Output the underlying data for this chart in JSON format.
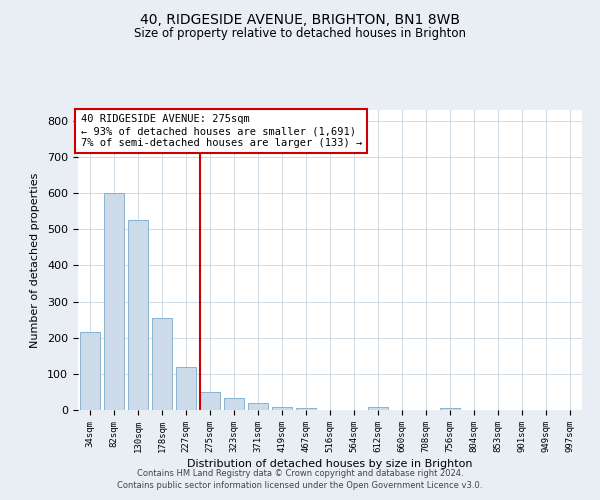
{
  "title": "40, RIDGESIDE AVENUE, BRIGHTON, BN1 8WB",
  "subtitle": "Size of property relative to detached houses in Brighton",
  "xlabel": "Distribution of detached houses by size in Brighton",
  "ylabel": "Number of detached properties",
  "bar_labels": [
    "34sqm",
    "82sqm",
    "130sqm",
    "178sqm",
    "227sqm",
    "275sqm",
    "323sqm",
    "371sqm",
    "419sqm",
    "467sqm",
    "516sqm",
    "564sqm",
    "612sqm",
    "660sqm",
    "708sqm",
    "756sqm",
    "804sqm",
    "853sqm",
    "901sqm",
    "949sqm",
    "997sqm"
  ],
  "bar_values": [
    215,
    600,
    527,
    255,
    118,
    50,
    33,
    18,
    8,
    5,
    0,
    0,
    7,
    0,
    0,
    5,
    0,
    0,
    0,
    0,
    0
  ],
  "bar_color": "#ccdaea",
  "bar_edge_color": "#7aaac8",
  "vline_color": "#cc0000",
  "annotation_title": "40 RIDGESIDE AVENUE: 275sqm",
  "annotation_line1": "← 93% of detached houses are smaller (1,691)",
  "annotation_line2": "7% of semi-detached houses are larger (133) →",
  "annotation_box_edgecolor": "#cc0000",
  "ylim": [
    0,
    830
  ],
  "yticks": [
    0,
    100,
    200,
    300,
    400,
    500,
    600,
    700,
    800
  ],
  "footer1": "Contains HM Land Registry data © Crown copyright and database right 2024.",
  "footer2": "Contains public sector information licensed under the Open Government Licence v3.0.",
  "bg_color": "#e8eef4",
  "plot_bg_color": "#ffffff"
}
